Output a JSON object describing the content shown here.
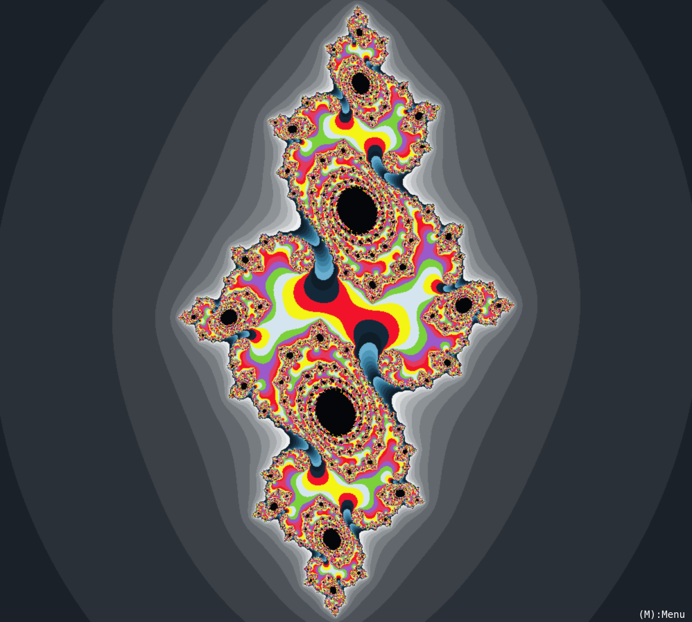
{
  "app": {
    "menu_hint": "(M):Menu"
  },
  "fractal": {
    "type": "julia-set",
    "background_color": "#000000",
    "palette_dark": [
      "#0c1116",
      "#1b2128",
      "#2a3037",
      "#3a4046",
      "#4c5258",
      "#61676c",
      "#777c81",
      "#8e9397",
      "#a6aaad",
      "#bec1c3",
      "#d8dadb",
      "#eef0f1"
    ],
    "palette_inner": [
      "#0e1d28",
      "#13293a",
      "#1a3a50",
      "#22506b",
      "#2c6786",
      "#3a7fa0",
      "#4f97b8",
      "#6aaed0"
    ],
    "accent_colors": [
      "#f2132a",
      "#f4f514",
      "#d5e5ef",
      "#7ad13a",
      "#9b59c9",
      "#e23a5e"
    ]
  }
}
